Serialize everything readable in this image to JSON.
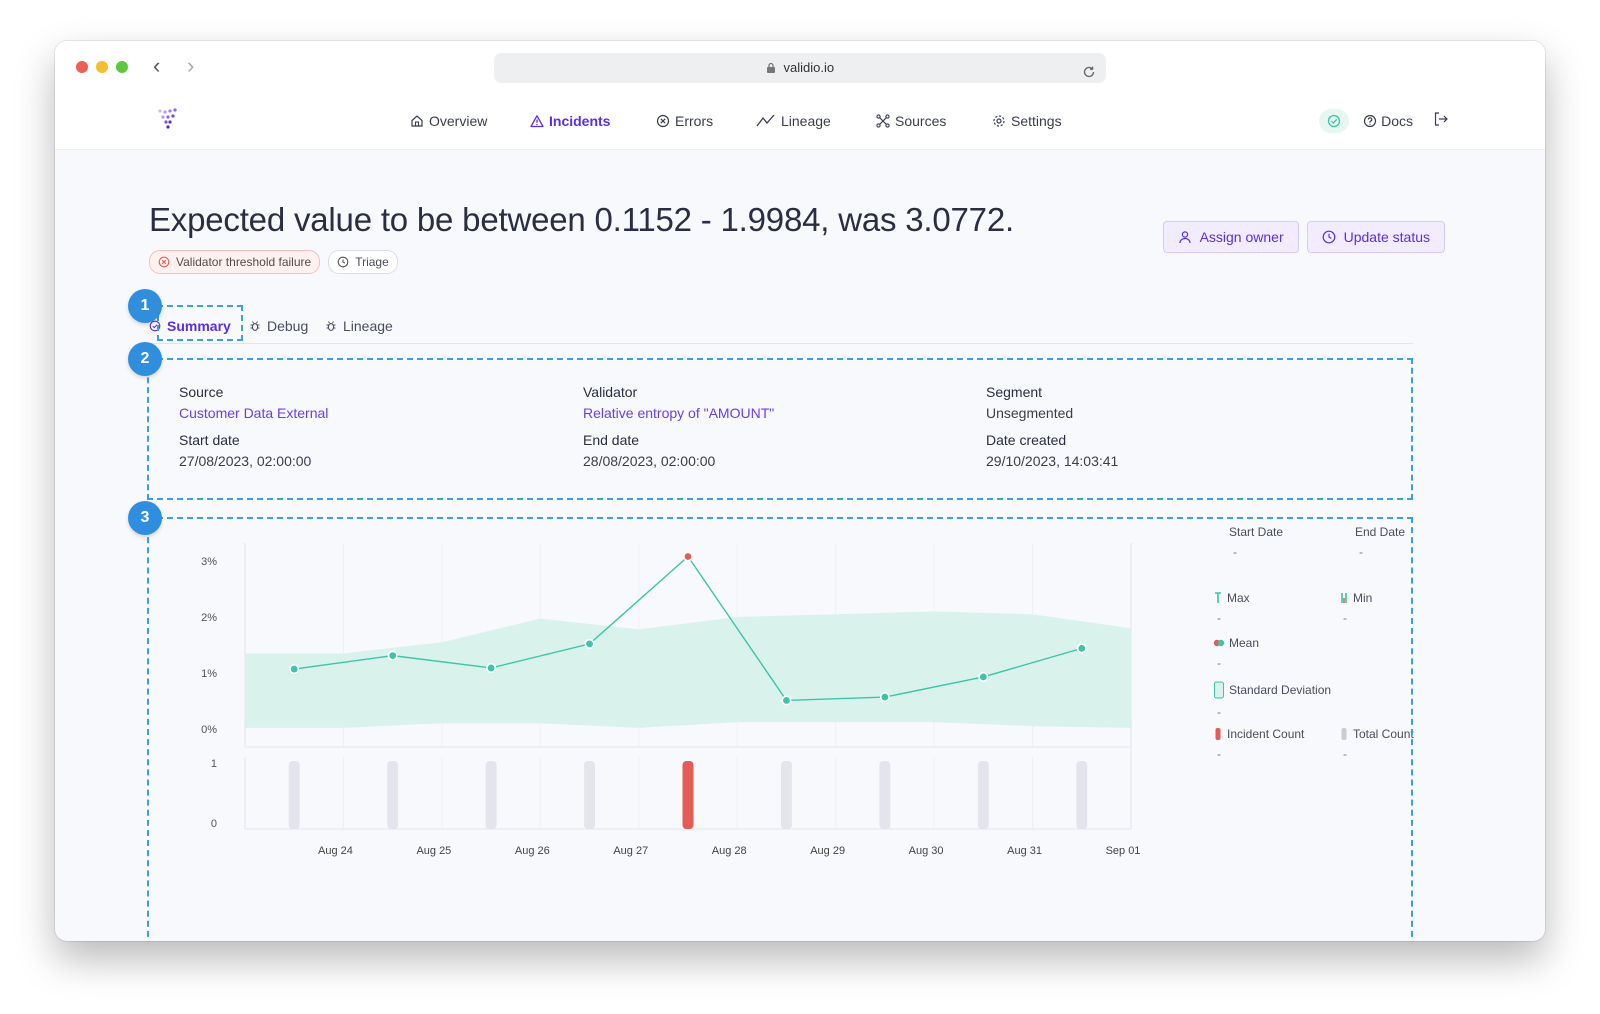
{
  "browser": {
    "url": "validio.io"
  },
  "nav": {
    "items": [
      {
        "label": "Overview",
        "icon": "home-icon"
      },
      {
        "label": "Incidents",
        "icon": "warning-icon"
      },
      {
        "label": "Errors",
        "icon": "x-circle-icon"
      },
      {
        "label": "Lineage",
        "icon": "trend-icon"
      },
      {
        "label": "Sources",
        "icon": "network-icon"
      },
      {
        "label": "Settings",
        "icon": "gear-icon"
      }
    ],
    "active": "Incidents",
    "docs": "Docs"
  },
  "page": {
    "title": "Expected value to be between 0.1152 - 1.9984, was 3.0772.",
    "badges": [
      "Validator threshold failure",
      "Triage"
    ],
    "actions": {
      "assign": "Assign owner",
      "update": "Update status"
    }
  },
  "tabs": [
    "Summary",
    "Debug",
    "Lineage"
  ],
  "callouts": [
    "1",
    "2",
    "3"
  ],
  "meta": {
    "source_label": "Source",
    "source_value": "Customer Data External",
    "validator_label": "Validator",
    "validator_value": "Relative entropy of \"AMOUNT\"",
    "segment_label": "Segment",
    "segment_value": "Unsegmented",
    "start_label": "Start date",
    "start_value": "27/08/2023, 02:00:00",
    "end_label": "End date",
    "end_value": "28/08/2023, 02:00:00",
    "created_label": "Date created",
    "created_value": "29/10/2023, 14:03:41"
  },
  "legend": {
    "start_date": "Start Date",
    "end_date": "End Date",
    "max": "Max",
    "min": "Min",
    "mean": "Mean",
    "std": "Standard Deviation",
    "incident_count": "Incident Count",
    "total_count": "Total Count",
    "empty": "-"
  },
  "colors": {
    "accent": "#5b2ee6",
    "teal": "#3cc4a8",
    "band": "#d9f3ec",
    "incident": "#e45c56",
    "count": "#e4e5ec",
    "callout": "#2f8fde"
  },
  "chart_data": {
    "type": "line",
    "x_ticks": [
      "Aug 24",
      "Aug 25",
      "Aug 26",
      "Aug 27",
      "Aug 28",
      "Aug 29",
      "Aug 30",
      "Aug 31",
      "Sep 01"
    ],
    "y_ticks": [
      "3%",
      "2%",
      "1%",
      "0%"
    ],
    "y_range": [
      0,
      3.4
    ],
    "series": [
      {
        "x": [
          "2023-08-23T12:00",
          "2023-08-24T12:00",
          "2023-08-25T12:00",
          "2023-08-26T12:00",
          "2023-08-27T12:00",
          "2023-08-28T12:00",
          "2023-08-29T12:00",
          "2023-08-30T12:00",
          "2023-08-31T12:00"
        ],
        "values": [
          1.07,
          1.31,
          1.09,
          1.52,
          3.08,
          0.51,
          0.57,
          0.93,
          1.44
        ],
        "incident": [
          false,
          false,
          false,
          false,
          true,
          false,
          false,
          false,
          false
        ]
      }
    ],
    "band": {
      "x": [
        "2023-08-23T00:00",
        "2023-08-24T00:00",
        "2023-08-25T00:00",
        "2023-08-26T00:00",
        "2023-08-27T00:00",
        "2023-08-28T00:00",
        "2023-08-29T00:00",
        "2023-08-30T00:00",
        "2023-08-31T00:00",
        "2023-09-01T00:00"
      ],
      "upper": [
        1.35,
        1.35,
        1.55,
        1.97,
        1.78,
        2.0,
        2.05,
        2.1,
        2.05,
        1.8
      ],
      "lower": [
        0.02,
        0.02,
        0.1,
        0.1,
        0.02,
        0.12,
        0.12,
        0.12,
        0.05,
        0.02
      ]
    },
    "count_chart": {
      "y_ticks": [
        "1",
        "0"
      ],
      "values": [
        1,
        1,
        1,
        1,
        1,
        1,
        1,
        1,
        1
      ],
      "incident": [
        0,
        0,
        0,
        0,
        1,
        0,
        0,
        0,
        0
      ]
    }
  }
}
